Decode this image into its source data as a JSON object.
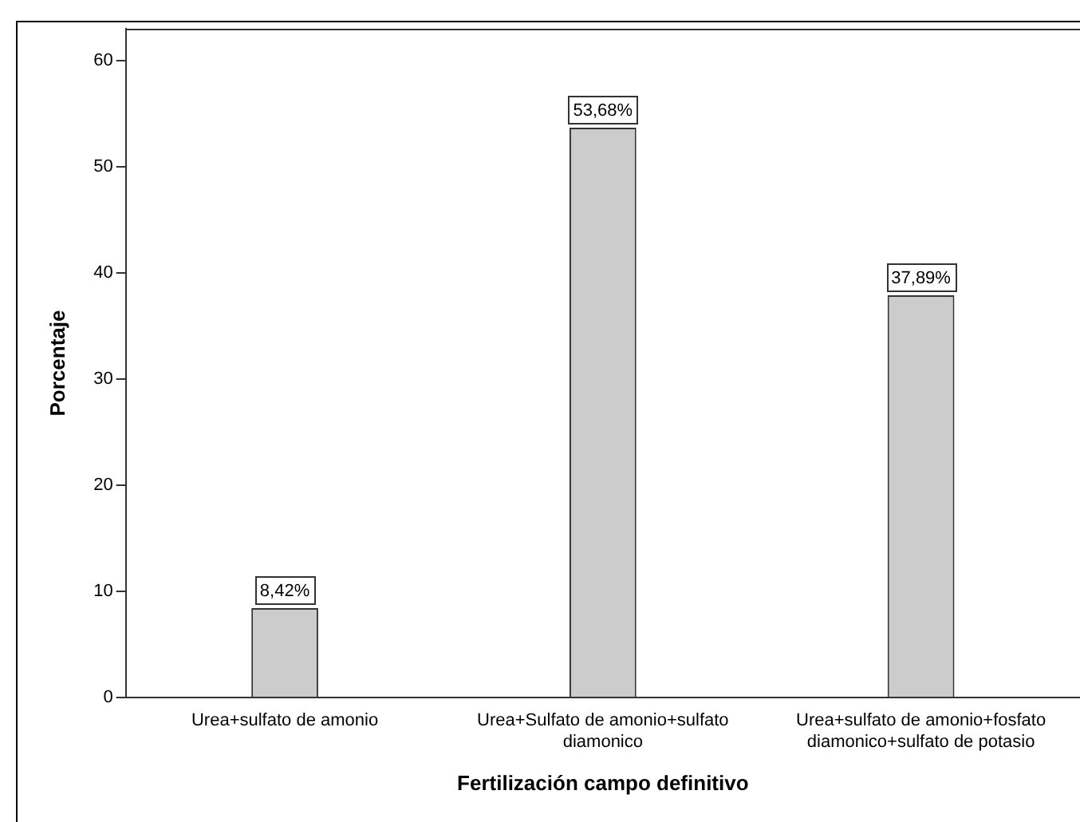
{
  "chart_data": {
    "type": "bar",
    "xlabel": "Fertilización campo definitivo",
    "ylabel": "Porcentaje",
    "categories": [
      "Urea+sulfato de amonio",
      "Urea+Sulfato de amonio+sulfato diamonico",
      "Urea+sulfato de amonio+fosfato diamonico+sulfato de potasio"
    ],
    "values": [
      8.42,
      53.68,
      37.89
    ],
    "value_labels": [
      "8,42%",
      "53,68%",
      "37,89%"
    ],
    "color": "#cccccc",
    "ylim": [
      0,
      63
    ],
    "yticks": [
      0,
      10,
      20,
      30,
      40,
      50,
      60
    ],
    "grid": false,
    "legend": false
  }
}
